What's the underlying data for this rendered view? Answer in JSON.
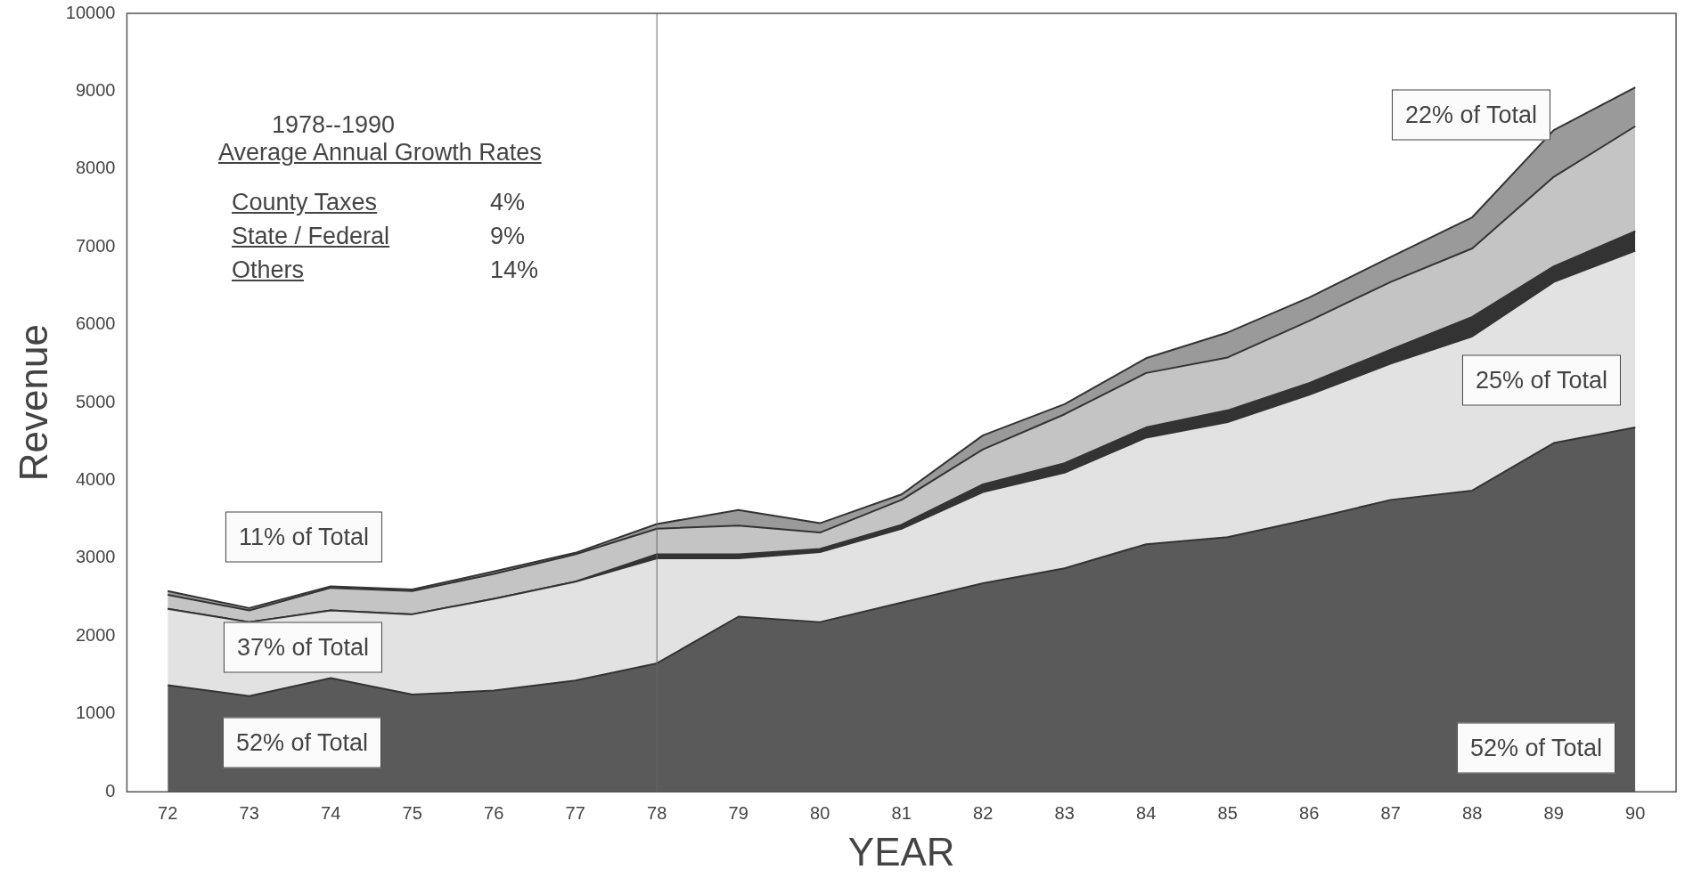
{
  "chart_data": {
    "type": "area",
    "stacked": true,
    "xlabel": "YEAR",
    "ylabel": "Revenue",
    "x": [
      72,
      73,
      74,
      75,
      76,
      77,
      78,
      79,
      80,
      81,
      82,
      83,
      84,
      85,
      86,
      87,
      88,
      89,
      90
    ],
    "xlim": [
      71.5,
      90.5
    ],
    "xticks": [
      72,
      73,
      74,
      75,
      76,
      77,
      78,
      79,
      80,
      81,
      82,
      83,
      84,
      85,
      86,
      87,
      88,
      89,
      90
    ],
    "ylim": [
      0,
      10000
    ],
    "yticks": [
      0,
      1000,
      2000,
      3000,
      4000,
      5000,
      6000,
      7000,
      8000,
      9000,
      10000
    ],
    "grid": false,
    "legend": false,
    "series": [
      {
        "color": "#5a5a5a",
        "values": [
          1370,
          1230,
          1460,
          1250,
          1300,
          1430,
          1650,
          2250,
          2180,
          2430,
          2680,
          2870,
          3180,
          3270,
          3500,
          3750,
          3870,
          4480,
          4680
        ]
      },
      {
        "color": "#e2e2e2",
        "values": [
          980,
          950,
          870,
          1030,
          1180,
          1270,
          1350,
          750,
          900,
          950,
          1170,
          1230,
          1370,
          1480,
          1600,
          1750,
          1980,
          2070,
          2270
        ]
      },
      {
        "color": "#333333",
        "values": [
          0,
          0,
          0,
          0,
          0,
          0,
          50,
          50,
          40,
          50,
          100,
          120,
          130,
          150,
          150,
          180,
          250,
          200,
          250
        ]
      },
      {
        "color": "#c4c4c4",
        "values": [
          180,
          150,
          290,
          300,
          320,
          350,
          330,
          370,
          210,
          320,
          450,
          630,
          700,
          680,
          800,
          870,
          880,
          1150,
          1350
        ]
      },
      {
        "color": "#9a9a9a",
        "values": [
          50,
          30,
          20,
          20,
          30,
          20,
          60,
          200,
          120,
          70,
          180,
          130,
          190,
          320,
          300,
          320,
          400,
          600,
          500
        ]
      }
    ],
    "ref_lines": [
      {
        "axis": "x",
        "value": 78,
        "color": "#666666"
      }
    ],
    "annotations": [
      "1978--1990",
      "Average Annual Growth Rates",
      "County  Taxes",
      "4%",
      "State  / Federal",
      "9%",
      "Others",
      "14%",
      "52% of Total",
      "37% of Total",
      "11% of Total",
      "52% of Total",
      "25% of Total",
      "22% of Total"
    ]
  }
}
